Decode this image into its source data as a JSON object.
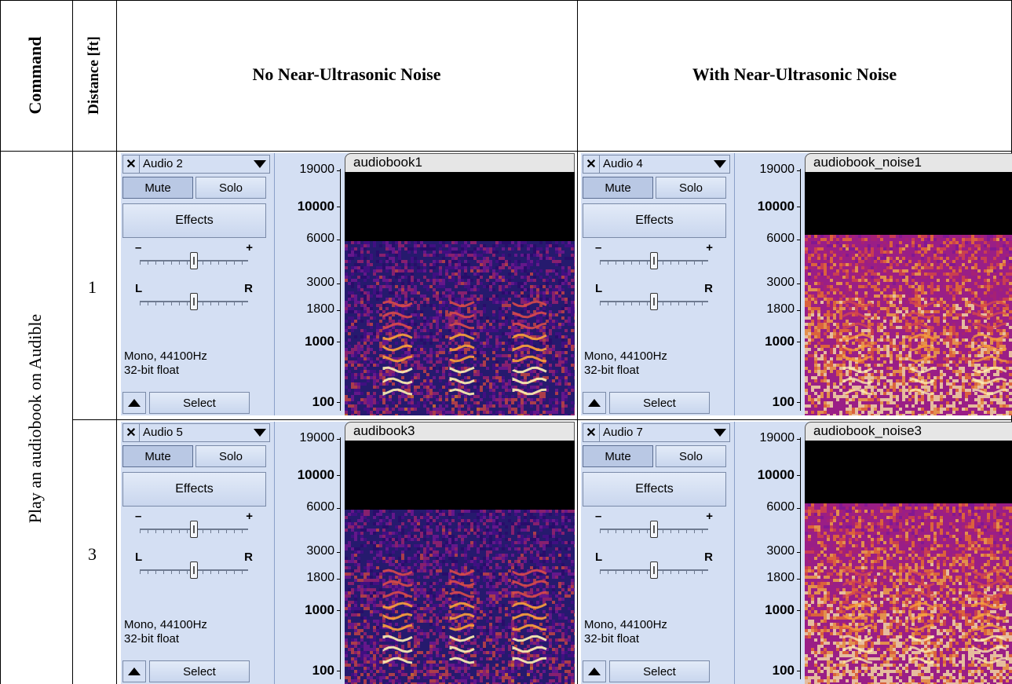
{
  "table": {
    "headers": {
      "command": "Command",
      "distance": "Distance [ft]",
      "no_noise": "No Near-Ultrasonic Noise",
      "with_noise": "With Near-Ultrasonic Noise"
    },
    "command_text": "Play an audiobook on Audible",
    "rows": [
      {
        "distance": "1"
      },
      {
        "distance": "3"
      }
    ]
  },
  "tracks": [
    {
      "name": "Audio 2",
      "clip": "audiobook1",
      "noise": false
    },
    {
      "name": "Audio 4",
      "clip": "audiobook_noise1",
      "noise": true
    },
    {
      "name": "Audio 5",
      "clip": "audibook3",
      "noise": false
    },
    {
      "name": "Audio 7",
      "clip": "audiobook_noise3",
      "noise": true
    }
  ],
  "controls": {
    "mute": "Mute",
    "solo": "Solo",
    "effects": "Effects",
    "gain_minus": "–",
    "gain_plus": "+",
    "pan_left": "L",
    "pan_right": "R",
    "format_line1": "Mono, 44100Hz",
    "format_line2": "32-bit float",
    "select": "Select",
    "close_glyph": "✕"
  },
  "ruler_labels": [
    "19000",
    "10000",
    "6000",
    "3000",
    "1800",
    "1000",
    "100"
  ],
  "icons": {
    "close": "close-icon",
    "dropdown": "dropdown-arrow-icon",
    "collapse": "collapse-arrow-icon"
  },
  "colors": {
    "panel_bg": "#d4dff3",
    "spectrogram_bg": "#000000"
  }
}
